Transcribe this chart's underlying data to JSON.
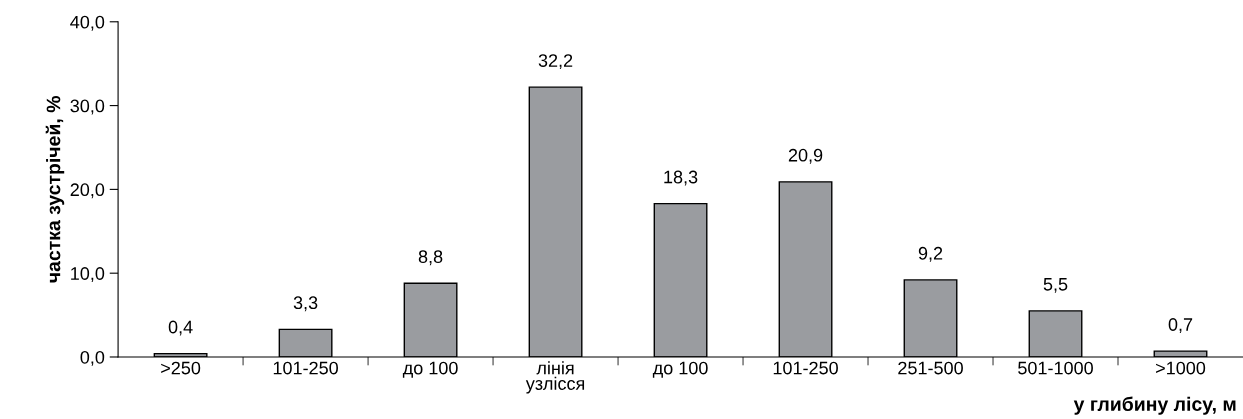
{
  "chart_data": {
    "type": "bar",
    "xlabel": "у глибину лісу, м",
    "ylabel": "частка зустрічей, %",
    "categories": [
      ">250",
      "101-250",
      "до 100",
      "лінія\nузлісся",
      "до 100",
      "101-250",
      "251-500",
      "501-1000",
      ">1000"
    ],
    "values": [
      0.4,
      3.3,
      8.8,
      32.2,
      18.3,
      20.9,
      9.2,
      5.5,
      0.7
    ],
    "value_labels": [
      "0,4",
      "3,3",
      "8,8",
      "32,2",
      "18,3",
      "20,9",
      "9,2",
      "5,5",
      "0,7"
    ],
    "color": "#9a9ca0",
    "ylim": [
      0,
      40
    ],
    "yticks": [
      {
        "value": 0,
        "label": "0,0"
      },
      {
        "value": 10,
        "label": "10,0"
      },
      {
        "value": 20,
        "label": "20,0"
      },
      {
        "value": 30,
        "label": "30,0"
      },
      {
        "value": 40,
        "label": "40,0"
      }
    ],
    "grid": false,
    "legend": false
  }
}
